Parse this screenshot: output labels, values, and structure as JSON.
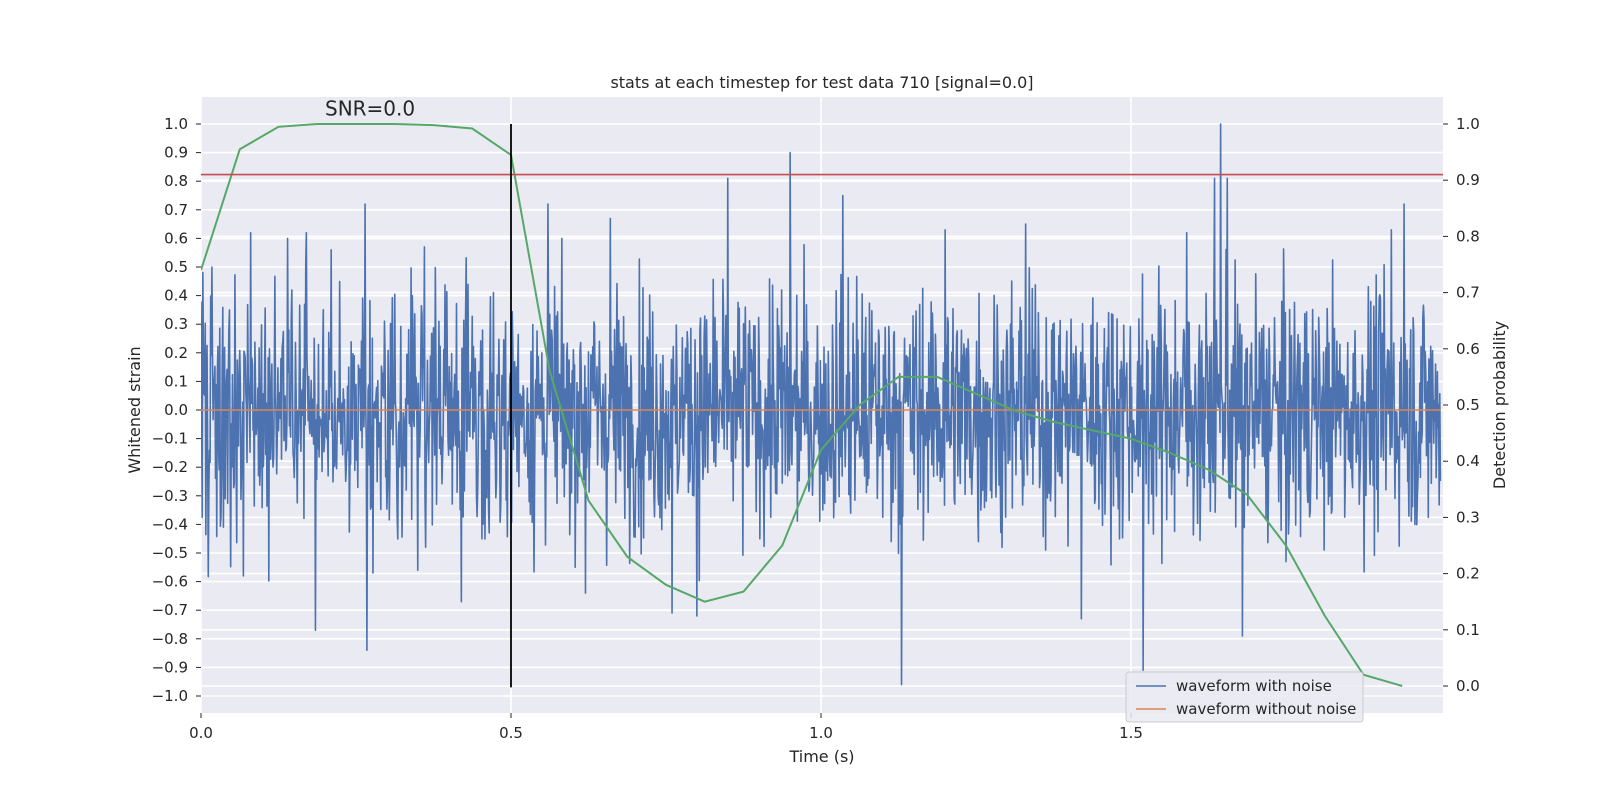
{
  "chart_data": {
    "type": "line",
    "title": "stats at each timestep for test data 710 [signal=0.0]",
    "xlabel": "Time (s)",
    "ylabel": "Whitened strain",
    "y2label": "Detection probability",
    "xlim": [
      0.0,
      2.0
    ],
    "ylim": [
      -1.1,
      1.1
    ],
    "y2lim": [
      -0.05,
      1.05
    ],
    "xticks": [
      0.0,
      0.5,
      1.0,
      1.5
    ],
    "xtick_labels": [
      "0.0",
      "0.5",
      "1.0",
      "1.5"
    ],
    "yticks": [
      -1.0,
      -0.9,
      -0.8,
      -0.7,
      -0.6,
      -0.5,
      -0.4,
      -0.3,
      -0.2,
      -0.1,
      0.0,
      0.1,
      0.2,
      0.3,
      0.4,
      0.5,
      0.6,
      0.7,
      0.8,
      0.9,
      1.0
    ],
    "ytick_labels": [
      "−1.0",
      "−0.9",
      "−0.8",
      "−0.7",
      "−0.6",
      "−0.5",
      "−0.4",
      "−0.3",
      "−0.2",
      "−0.1",
      "0.0",
      "0.1",
      "0.2",
      "0.3",
      "0.4",
      "0.5",
      "0.6",
      "0.7",
      "0.8",
      "0.9",
      "1.0"
    ],
    "y2ticks": [
      0.0,
      0.1,
      0.2,
      0.3,
      0.4,
      0.5,
      0.6,
      0.7,
      0.8,
      0.9,
      1.0
    ],
    "y2tick_labels": [
      "0.0",
      "0.1",
      "0.2",
      "0.3",
      "0.4",
      "0.5",
      "0.6",
      "0.7",
      "0.8",
      "0.9",
      "1.0"
    ],
    "annotation": "SNR=0.0",
    "annotation_position": {
      "x": 0.2,
      "y": 1.03
    },
    "legend": {
      "placement": "lower-right",
      "entries": [
        {
          "label": "waveform with noise",
          "color": "#4c72b0"
        },
        {
          "label": "waveform without noise",
          "color": "#dd8452"
        }
      ]
    },
    "series": [
      {
        "name": "waveform with noise",
        "color": "#4c72b0",
        "axis": "left",
        "sample_rate_hz": 1024,
        "noise_sigma": 0.21,
        "peak_events": [
          {
            "x": 0.0,
            "y": 0.38
          },
          {
            "x": 0.018,
            "y": 0.5
          },
          {
            "x": 0.068,
            "y": -0.58
          },
          {
            "x": 0.08,
            "y": 0.62
          },
          {
            "x": 0.14,
            "y": 0.6
          },
          {
            "x": 0.17,
            "y": 0.62
          },
          {
            "x": 0.185,
            "y": -0.77
          },
          {
            "x": 0.21,
            "y": 0.56
          },
          {
            "x": 0.265,
            "y": 0.72
          },
          {
            "x": 0.268,
            "y": -0.84
          },
          {
            "x": 0.35,
            "y": -0.56
          },
          {
            "x": 0.36,
            "y": 0.57
          },
          {
            "x": 0.42,
            "y": -0.67
          },
          {
            "x": 0.56,
            "y": 0.72
          },
          {
            "x": 0.62,
            "y": -0.64
          },
          {
            "x": 0.66,
            "y": 0.67
          },
          {
            "x": 0.76,
            "y": -0.71
          },
          {
            "x": 0.8,
            "y": -0.72
          },
          {
            "x": 0.85,
            "y": 0.81
          },
          {
            "x": 0.95,
            "y": 0.9
          },
          {
            "x": 1.035,
            "y": 0.75
          },
          {
            "x": 1.13,
            "y": -0.96
          },
          {
            "x": 1.2,
            "y": 0.63
          },
          {
            "x": 1.33,
            "y": 0.65
          },
          {
            "x": 1.42,
            "y": -0.73
          },
          {
            "x": 1.52,
            "y": -0.91
          },
          {
            "x": 1.59,
            "y": 0.62
          },
          {
            "x": 1.635,
            "y": 0.81
          },
          {
            "x": 1.645,
            "y": 1.0
          },
          {
            "x": 1.655,
            "y": 0.81
          },
          {
            "x": 1.68,
            "y": -0.79
          },
          {
            "x": 1.75,
            "y": -0.53
          },
          {
            "x": 1.92,
            "y": 0.63
          },
          {
            "x": 1.94,
            "y": 0.72
          }
        ]
      },
      {
        "name": "waveform without noise",
        "color": "#dd8452",
        "axis": "left",
        "x": [
          0.0,
          2.0
        ],
        "y": [
          0.0,
          0.0
        ]
      },
      {
        "name": "detection probability",
        "color": "#55a868",
        "axis": "right",
        "x": [
          0.0,
          0.0625,
          0.125,
          0.1875,
          0.25,
          0.3125,
          0.375,
          0.4375,
          0.5,
          0.5625,
          0.625,
          0.6875,
          0.75,
          0.8125,
          0.875,
          0.9375,
          1.0,
          1.0625,
          1.125,
          1.1875,
          1.25,
          1.3125,
          1.375,
          1.4375,
          1.5,
          1.5625,
          1.625,
          1.6875,
          1.75,
          1.8125,
          1.875,
          1.9375
        ],
        "y": [
          0.74,
          0.955,
          0.995,
          1.0,
          1.0,
          1.0,
          0.998,
          0.992,
          0.945,
          0.56,
          0.33,
          0.23,
          0.18,
          0.15,
          0.168,
          0.25,
          0.42,
          0.5,
          0.55,
          0.55,
          0.52,
          0.49,
          0.47,
          0.455,
          0.44,
          0.415,
          0.385,
          0.34,
          0.25,
          0.125,
          0.02,
          0.0
        ]
      }
    ],
    "reference_lines": [
      {
        "name": "threshold-line",
        "orientation": "horizontal",
        "axis": "right",
        "value": 0.91,
        "color": "#c44e52"
      },
      {
        "name": "event-time-line",
        "orientation": "vertical",
        "x": 0.5,
        "y_range": [
          -0.97,
          1.0
        ],
        "color": "#000000"
      }
    ]
  }
}
